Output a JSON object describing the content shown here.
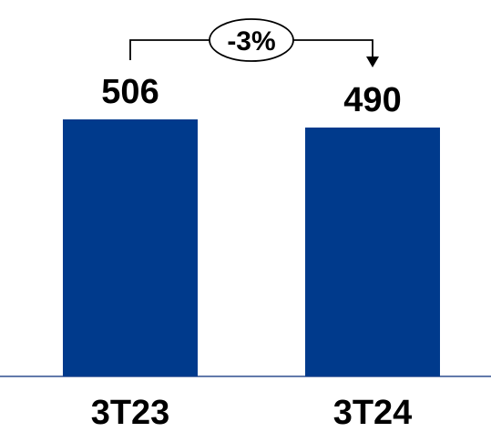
{
  "chart_data": {
    "type": "bar",
    "categories": [
      "3T23",
      "3T24"
    ],
    "values": [
      506,
      490
    ],
    "data_labels": [
      "506",
      "490"
    ],
    "change_annotation": "-3%",
    "title": "",
    "xlabel": "",
    "ylabel": "",
    "ylim": [
      0,
      506
    ],
    "grid": false,
    "legend": "none",
    "bar_color": "#003a8c",
    "axis_color": "#2f4f8f"
  }
}
